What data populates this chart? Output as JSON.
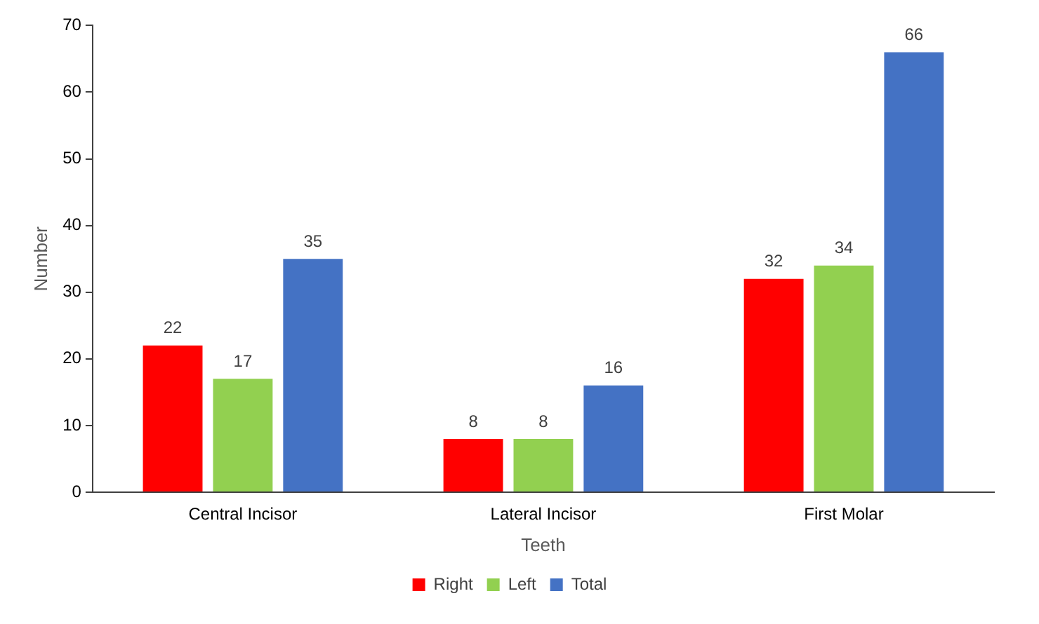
{
  "chart_data": {
    "type": "bar",
    "xlabel": "Teeth",
    "ylabel": "Number",
    "categories": [
      "Central Incisor",
      "Lateral Incisor",
      "First Molar"
    ],
    "series": [
      {
        "name": "Right",
        "color": "#ff0000",
        "values": [
          22,
          8,
          32
        ]
      },
      {
        "name": "Left",
        "color": "#92d050",
        "values": [
          17,
          8,
          34
        ]
      },
      {
        "name": "Total",
        "color": "#4472c4",
        "values": [
          35,
          16,
          66
        ]
      }
    ],
    "ylim": [
      0,
      70
    ],
    "yticks": [
      0,
      10,
      20,
      30,
      40,
      50,
      60,
      70
    ],
    "grid": false,
    "legend": "bottom",
    "data_labels": true
  }
}
